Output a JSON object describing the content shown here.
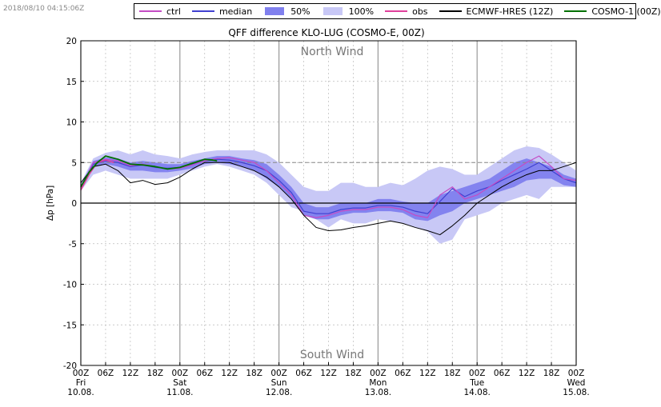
{
  "timestamp": "2018/08/10 04:15:06Z",
  "legend": [
    {
      "label": "ctrl",
      "kind": "line",
      "color": "#c44cc4"
    },
    {
      "label": "median",
      "kind": "line",
      "color": "#4040d0"
    },
    {
      "label": "50%",
      "kind": "box",
      "color": "#8080ee"
    },
    {
      "label": "100%",
      "kind": "box",
      "color": "#c8c8f6"
    },
    {
      "label": "obs",
      "kind": "line",
      "color": "#e0409c"
    },
    {
      "label": "ECMWF-HRES (12Z)",
      "kind": "line",
      "color": "#000000"
    },
    {
      "label": "COSMO-1 (00Z)",
      "kind": "line",
      "color": "#007000"
    }
  ],
  "chart_data": {
    "type": "line",
    "title": "QFF difference KLO-LUG (COSMO-E, 00Z)",
    "ylabel": "Δp [hPa]",
    "xlabel": "",
    "xlim": [
      0,
      120
    ],
    "ylim": [
      -20,
      20
    ],
    "yticks": [
      -20,
      -15,
      -10,
      -5,
      0,
      5,
      10,
      15,
      20
    ],
    "xticks": [
      {
        "t": 0,
        "label": "00Z",
        "day": "Fri",
        "date": "10.08."
      },
      {
        "t": 6,
        "label": "06Z"
      },
      {
        "t": 12,
        "label": "12Z"
      },
      {
        "t": 18,
        "label": "18Z"
      },
      {
        "t": 24,
        "label": "00Z",
        "day": "Sat",
        "date": "11.08."
      },
      {
        "t": 30,
        "label": "06Z"
      },
      {
        "t": 36,
        "label": "12Z"
      },
      {
        "t": 42,
        "label": "18Z"
      },
      {
        "t": 48,
        "label": "00Z",
        "day": "Sun",
        "date": "12.08."
      },
      {
        "t": 54,
        "label": "06Z"
      },
      {
        "t": 60,
        "label": "12Z"
      },
      {
        "t": 66,
        "label": "18Z"
      },
      {
        "t": 72,
        "label": "00Z",
        "day": "Mon",
        "date": "13.08."
      },
      {
        "t": 78,
        "label": "06Z"
      },
      {
        "t": 84,
        "label": "12Z"
      },
      {
        "t": 90,
        "label": "18Z"
      },
      {
        "t": 96,
        "label": "00Z",
        "day": "Tue",
        "date": "14.08."
      },
      {
        "t": 102,
        "label": "06Z"
      },
      {
        "t": 108,
        "label": "12Z"
      },
      {
        "t": 114,
        "label": "18Z"
      },
      {
        "t": 120,
        "label": "00Z",
        "day": "Wed",
        "date": "15.08."
      }
    ],
    "annotations": {
      "top": "North Wind",
      "bottom": "South Wind"
    },
    "reference_lines": {
      "horizontal_at": 0,
      "dashed_at": 5
    },
    "grid": true,
    "bands": {
      "x": [
        0,
        3,
        6,
        9,
        12,
        15,
        18,
        21,
        24,
        27,
        30,
        33,
        36,
        39,
        42,
        45,
        48,
        51,
        54,
        57,
        60,
        63,
        66,
        69,
        72,
        75,
        78,
        81,
        84,
        87,
        90,
        93,
        96,
        99,
        102,
        105,
        108,
        111,
        114,
        117,
        120
      ],
      "p100_low": [
        1.5,
        3.5,
        4.0,
        3.5,
        3.0,
        3.0,
        3.0,
        3.0,
        3.5,
        4.0,
        4.5,
        4.8,
        4.5,
        4.0,
        3.5,
        2.5,
        1.0,
        -0.5,
        -1.0,
        -2.0,
        -3.0,
        -2.0,
        -2.5,
        -2.5,
        -2.0,
        -2.2,
        -2.5,
        -3.0,
        -3.5,
        -5.0,
        -4.5,
        -2.0,
        -1.5,
        -1.0,
        0.0,
        0.5,
        1.0,
        0.5,
        2.0,
        2.0,
        2.0
      ],
      "p100_high": [
        2.5,
        5.5,
        6.2,
        6.5,
        6.0,
        6.5,
        6.0,
        5.8,
        5.5,
        6.0,
        6.3,
        6.5,
        6.5,
        6.5,
        6.5,
        6.0,
        5.0,
        3.5,
        2.0,
        1.5,
        1.5,
        2.5,
        2.5,
        2.0,
        2.0,
        2.5,
        2.2,
        3.0,
        4.0,
        4.5,
        4.2,
        3.5,
        3.5,
        4.5,
        5.5,
        6.5,
        7.0,
        6.8,
        6.0,
        5.0,
        4.0
      ],
      "p50_low": [
        1.8,
        4.5,
        4.8,
        4.5,
        4.0,
        4.0,
        3.8,
        3.8,
        4.0,
        4.3,
        4.8,
        5.0,
        4.8,
        4.5,
        4.0,
        3.0,
        2.0,
        0.5,
        -1.5,
        -2.0,
        -2.0,
        -1.5,
        -1.2,
        -1.2,
        -1.0,
        -1.0,
        -1.2,
        -2.0,
        -2.2,
        -1.5,
        -1.0,
        0.0,
        0.5,
        1.0,
        1.5,
        2.0,
        2.8,
        3.0,
        3.0,
        2.2,
        2.0
      ],
      "p50_high": [
        2.2,
        5.2,
        5.6,
        5.5,
        5.0,
        5.2,
        5.0,
        4.8,
        4.8,
        5.2,
        5.5,
        5.8,
        5.8,
        5.5,
        5.3,
        4.8,
        3.5,
        2.0,
        0.0,
        -0.5,
        -0.5,
        0.0,
        0.0,
        0.0,
        0.5,
        0.5,
        0.2,
        0.0,
        0.0,
        1.0,
        1.5,
        2.0,
        2.5,
        3.0,
        4.0,
        5.0,
        5.5,
        5.0,
        4.5,
        3.5,
        3.0
      ]
    },
    "series": [
      {
        "name": "median",
        "color": "#4040d0",
        "width": 1.2,
        "x": [
          0,
          3,
          6,
          9,
          12,
          15,
          18,
          21,
          24,
          27,
          30,
          33,
          36,
          39,
          42,
          45,
          48,
          51,
          54,
          57,
          60,
          63,
          66,
          69,
          72,
          75,
          78,
          81,
          84,
          87,
          90,
          93,
          96,
          99,
          102,
          105,
          108,
          111,
          114,
          117,
          120
        ],
        "y": [
          2.0,
          4.8,
          5.2,
          5.0,
          4.5,
          4.7,
          4.4,
          4.3,
          4.4,
          4.8,
          5.2,
          5.4,
          5.3,
          5.0,
          4.6,
          4.0,
          2.8,
          1.3,
          -1.0,
          -1.3,
          -1.3,
          -0.8,
          -0.6,
          -0.6,
          -0.3,
          -0.3,
          -0.5,
          -1.0,
          -1.3,
          0.2,
          1.8,
          0.8,
          1.5,
          2.0,
          2.8,
          3.5,
          4.2,
          5.0,
          4.0,
          3.0,
          2.5
        ]
      },
      {
        "name": "ctrl",
        "color": "#c44cc4",
        "width": 1.2,
        "x": [
          0,
          3,
          6,
          9,
          12,
          15,
          18,
          21,
          24,
          27,
          30,
          33,
          36,
          39,
          42,
          45,
          48,
          51,
          54,
          57,
          60,
          63,
          66,
          69,
          72,
          75,
          78,
          81,
          84,
          87,
          90,
          93,
          96,
          99,
          102,
          105,
          108,
          111,
          114,
          117,
          120
        ],
        "y": [
          1.8,
          5.0,
          5.4,
          5.2,
          4.6,
          4.8,
          4.5,
          4.2,
          4.3,
          4.7,
          5.2,
          5.5,
          5.6,
          5.3,
          5.0,
          4.0,
          2.5,
          1.0,
          -1.5,
          -1.8,
          -1.5,
          -1.0,
          -0.8,
          -0.8,
          -0.5,
          -0.5,
          -0.8,
          -1.5,
          -1.8,
          1.0,
          2.0,
          0.5,
          1.0,
          2.0,
          3.0,
          4.0,
          5.0,
          5.8,
          4.5,
          3.0,
          2.8
        ]
      },
      {
        "name": "obs",
        "color": "#e0409c",
        "width": 1.5,
        "x": [
          0,
          2,
          4,
          6,
          8
        ],
        "y": [
          1.6,
          3.5,
          5.0,
          5.3,
          5.0
        ]
      },
      {
        "name": "ECMWF-HRES (12Z)",
        "color": "#000000",
        "width": 1.0,
        "x": [
          0,
          3,
          6,
          9,
          12,
          15,
          18,
          21,
          24,
          27,
          30,
          33,
          36,
          39,
          42,
          45,
          48,
          51,
          54,
          57,
          60,
          63,
          66,
          69,
          72,
          75,
          78,
          81,
          84,
          87,
          90,
          93,
          96,
          99,
          102,
          105,
          108,
          111,
          114,
          117,
          120
        ],
        "y": [
          2.5,
          4.5,
          4.8,
          4.0,
          2.5,
          2.8,
          2.3,
          2.5,
          3.2,
          4.2,
          5.0,
          5.0,
          5.0,
          4.5,
          4.0,
          3.2,
          2.0,
          0.5,
          -1.5,
          -3.0,
          -3.4,
          -3.3,
          -3.0,
          -2.8,
          -2.5,
          -2.2,
          -2.5,
          -3.0,
          -3.4,
          -3.9,
          -2.8,
          -1.5,
          0.0,
          1.0,
          2.0,
          2.8,
          3.5,
          4.0,
          4.0,
          4.5,
          5.0
        ]
      },
      {
        "name": "COSMO-1 (00Z)",
        "color": "#007000",
        "width": 1.8,
        "x": [
          0,
          2,
          4,
          6,
          9,
          12,
          15,
          18,
          21,
          24,
          27,
          30,
          32,
          33
        ],
        "y": [
          2.0,
          3.8,
          5.0,
          5.8,
          5.4,
          4.8,
          4.7,
          4.5,
          4.2,
          4.4,
          4.9,
          5.4,
          5.3,
          5.2
        ]
      }
    ]
  }
}
